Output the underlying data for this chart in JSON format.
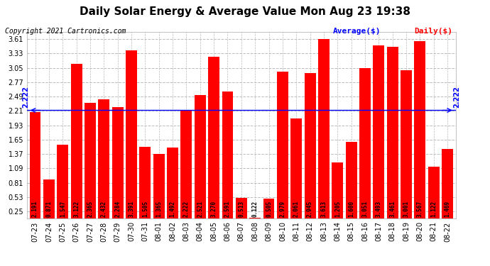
{
  "title": "Daily Solar Energy & Average Value Mon Aug 23 19:38",
  "copyright": "Copyright 2021 Cartronics.com",
  "average_label": "Average($)",
  "daily_label": "Daily($)",
  "average_value": 2.222,
  "categories": [
    "07-23",
    "07-24",
    "07-25",
    "07-26",
    "07-27",
    "07-28",
    "07-29",
    "07-30",
    "07-31",
    "08-01",
    "08-02",
    "08-03",
    "08-04",
    "08-05",
    "08-06",
    "08-07",
    "08-08",
    "08-09",
    "08-10",
    "08-11",
    "08-12",
    "08-13",
    "08-14",
    "08-15",
    "08-16",
    "08-17",
    "08-18",
    "08-19",
    "08-20",
    "08-21",
    "08-22"
  ],
  "values": [
    2.191,
    0.871,
    1.547,
    3.122,
    2.365,
    2.432,
    2.284,
    3.391,
    1.505,
    1.365,
    1.492,
    2.222,
    2.521,
    3.27,
    2.591,
    0.513,
    0.122,
    0.505,
    2.979,
    2.061,
    2.945,
    3.613,
    1.205,
    1.6,
    3.051,
    3.493,
    3.461,
    3.001,
    3.567,
    1.122,
    1.469
  ],
  "bar_color": "#FF0000",
  "average_line_color": "#0000FF",
  "background_color": "#FFFFFF",
  "grid_color": "#BBBBBB",
  "yticks": [
    0.25,
    0.53,
    0.81,
    1.09,
    1.37,
    1.65,
    1.93,
    2.21,
    2.49,
    2.77,
    3.05,
    3.33,
    3.61
  ],
  "ylim": [
    0.12,
    3.75
  ],
  "title_fontsize": 11,
  "copyright_fontsize": 7,
  "bar_label_fontsize": 5.5,
  "tick_fontsize": 7,
  "legend_fontsize": 8
}
